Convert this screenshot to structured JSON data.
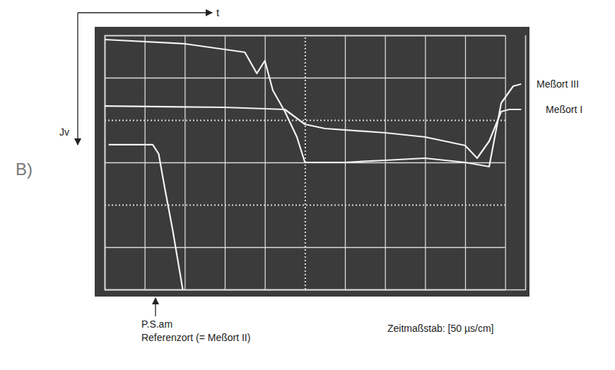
{
  "chart_data": {
    "type": "line",
    "panel": "B)",
    "x_label": "t",
    "y_label": "Jv",
    "scale_label": "Zeitmaßstab: [50 µs/cm]",
    "annotation": {
      "text": "P.S.am Referenzort (= Meßort II)",
      "x": 1.27
    },
    "xlim": [
      0,
      10.5
    ],
    "ylim": [
      0,
      6
    ],
    "xticks": [
      0,
      1,
      2,
      3,
      4,
      5,
      6,
      7,
      8,
      9,
      10
    ],
    "yticks": [
      0,
      1,
      2,
      3,
      4,
      5,
      6
    ],
    "grid": true,
    "tick_labels": false,
    "series": [
      {
        "name": "Meßort III",
        "color": "#f2f2f2",
        "x": [
          0,
          2,
          3.5,
          3.8,
          4.0,
          4.2,
          4.5,
          4.8,
          5,
          6,
          7,
          8,
          9,
          9.6,
          9.9,
          10.2,
          10.4
        ],
        "values": [
          0.1,
          0.2,
          0.4,
          0.9,
          0.6,
          1.3,
          1.8,
          2.4,
          3.0,
          3.0,
          2.95,
          2.9,
          3.0,
          3.1,
          1.6,
          1.2,
          1.15
        ]
      },
      {
        "name": "Meßort I",
        "color": "#f2f2f2",
        "x": [
          0,
          3,
          4.5,
          5,
          5.5,
          7,
          8,
          9,
          9.3,
          9.6,
          9.9,
          10.1,
          10.4
        ],
        "values": [
          1.67,
          1.7,
          1.75,
          2.1,
          2.2,
          2.3,
          2.4,
          2.6,
          2.9,
          2.5,
          1.8,
          1.75,
          1.75
        ]
      },
      {
        "color": "#f2f2f2",
        "x": [
          0.1,
          1.2,
          1.35,
          1.5,
          1.7,
          1.95
        ],
        "values": [
          2.58,
          2.58,
          2.8,
          3.6,
          4.6,
          6.0
        ]
      }
    ]
  }
}
